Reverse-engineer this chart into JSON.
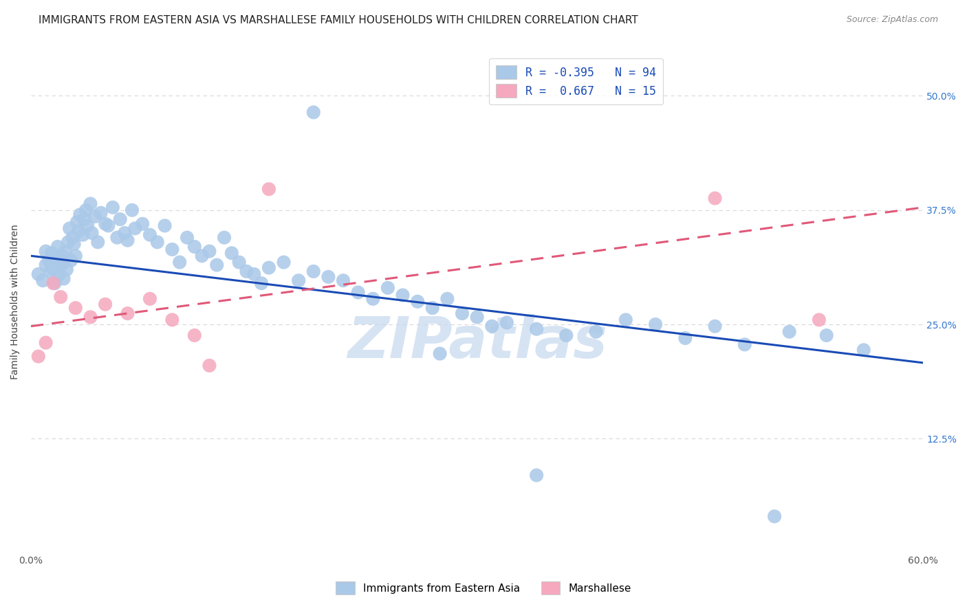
{
  "title": "IMMIGRANTS FROM EASTERN ASIA VS MARSHALLESE FAMILY HOUSEHOLDS WITH CHILDREN CORRELATION CHART",
  "source": "Source: ZipAtlas.com",
  "ylabel": "Family Households with Children",
  "xlim": [
    0.0,
    0.6
  ],
  "ylim": [
    0.0,
    0.55
  ],
  "ytick_positions": [
    0.125,
    0.25,
    0.375,
    0.5
  ],
  "ytick_labels": [
    "12.5%",
    "25.0%",
    "37.5%",
    "50.0%"
  ],
  "blue_R": -0.395,
  "blue_N": 94,
  "pink_R": 0.667,
  "pink_N": 15,
  "blue_color": "#aac8e8",
  "pink_color": "#f5a8be",
  "blue_line_color": "#1a4bb5",
  "pink_line_color": "#e05878",
  "watermark": "ZIPatlas",
  "watermark_color": "#c5d8ee",
  "background_color": "#ffffff",
  "grid_color": "#d8d8d8",
  "blue_x": [
    0.005,
    0.008,
    0.01,
    0.01,
    0.012,
    0.013,
    0.014,
    0.015,
    0.016,
    0.017,
    0.018,
    0.019,
    0.02,
    0.021,
    0.022,
    0.022,
    0.023,
    0.024,
    0.025,
    0.026,
    0.027,
    0.028,
    0.029,
    0.03,
    0.031,
    0.032,
    0.033,
    0.035,
    0.036,
    0.037,
    0.038,
    0.04,
    0.041,
    0.043,
    0.045,
    0.047,
    0.05,
    0.052,
    0.055,
    0.058,
    0.06,
    0.063,
    0.065,
    0.068,
    0.07,
    0.075,
    0.08,
    0.085,
    0.09,
    0.095,
    0.1,
    0.105,
    0.11,
    0.115,
    0.12,
    0.125,
    0.13,
    0.135,
    0.14,
    0.145,
    0.15,
    0.155,
    0.16,
    0.17,
    0.18,
    0.19,
    0.2,
    0.21,
    0.22,
    0.23,
    0.24,
    0.25,
    0.26,
    0.27,
    0.28,
    0.29,
    0.3,
    0.31,
    0.32,
    0.34,
    0.36,
    0.38,
    0.4,
    0.42,
    0.44,
    0.46,
    0.48,
    0.51,
    0.535,
    0.56,
    0.19,
    0.275,
    0.34,
    0.5
  ],
  "blue_y": [
    0.305,
    0.298,
    0.315,
    0.33,
    0.32,
    0.308,
    0.328,
    0.31,
    0.295,
    0.322,
    0.335,
    0.305,
    0.315,
    0.325,
    0.3,
    0.318,
    0.33,
    0.31,
    0.34,
    0.355,
    0.32,
    0.345,
    0.338,
    0.325,
    0.362,
    0.352,
    0.37,
    0.348,
    0.365,
    0.375,
    0.358,
    0.382,
    0.35,
    0.368,
    0.34,
    0.372,
    0.36,
    0.358,
    0.378,
    0.345,
    0.365,
    0.35,
    0.342,
    0.375,
    0.355,
    0.36,
    0.348,
    0.34,
    0.358,
    0.332,
    0.318,
    0.345,
    0.335,
    0.325,
    0.33,
    0.315,
    0.345,
    0.328,
    0.318,
    0.308,
    0.305,
    0.295,
    0.312,
    0.318,
    0.298,
    0.308,
    0.302,
    0.298,
    0.285,
    0.278,
    0.29,
    0.282,
    0.275,
    0.268,
    0.278,
    0.262,
    0.258,
    0.248,
    0.252,
    0.245,
    0.238,
    0.242,
    0.255,
    0.25,
    0.235,
    0.248,
    0.228,
    0.242,
    0.238,
    0.222,
    0.482,
    0.218,
    0.085,
    0.04
  ],
  "pink_x": [
    0.005,
    0.01,
    0.015,
    0.02,
    0.03,
    0.04,
    0.05,
    0.065,
    0.08,
    0.095,
    0.11,
    0.12,
    0.16,
    0.46,
    0.53
  ],
  "pink_y": [
    0.215,
    0.23,
    0.295,
    0.28,
    0.268,
    0.258,
    0.272,
    0.262,
    0.278,
    0.255,
    0.238,
    0.205,
    0.398,
    0.388,
    0.255
  ],
  "blue_line_x0": 0.0,
  "blue_line_y0": 0.325,
  "blue_line_x1": 0.6,
  "blue_line_y1": 0.208,
  "pink_line_x0": 0.0,
  "pink_line_y0": 0.248,
  "pink_line_x1": 0.6,
  "pink_line_y1": 0.378,
  "title_fontsize": 11,
  "axis_label_fontsize": 10,
  "tick_fontsize": 10,
  "legend_fontsize": 12
}
